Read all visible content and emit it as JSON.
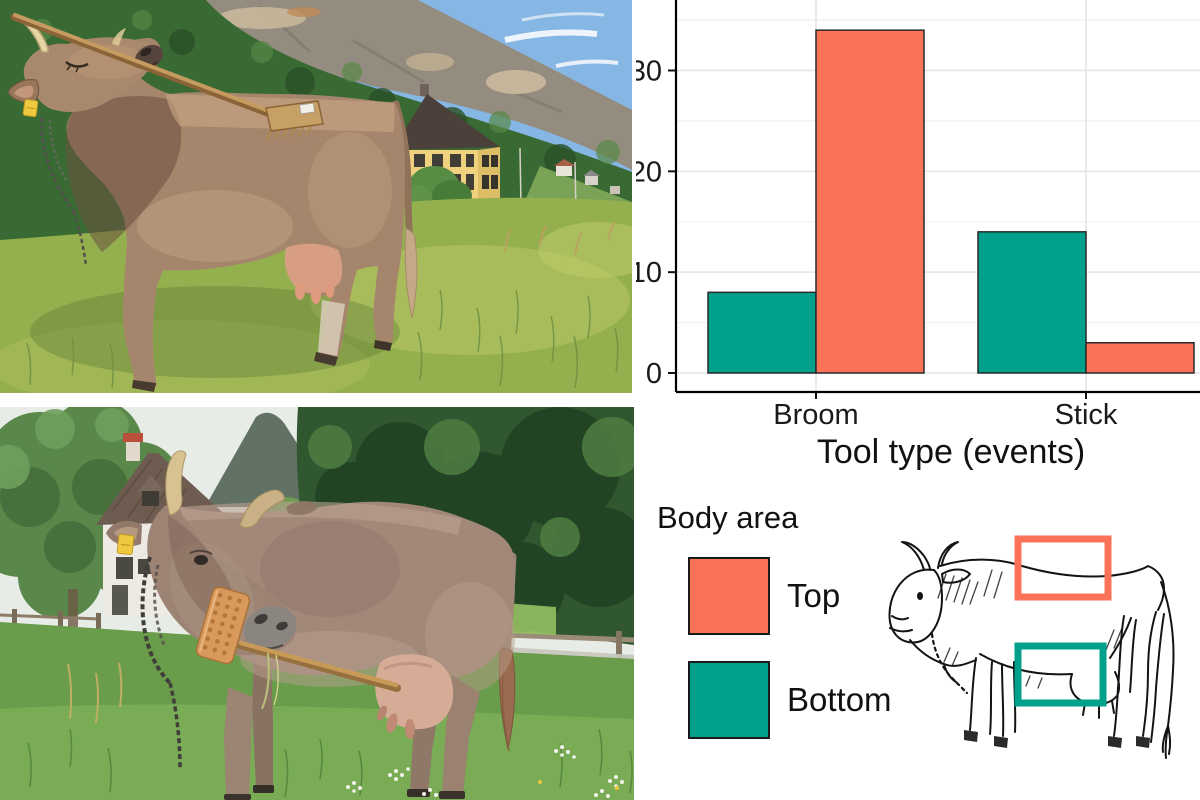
{
  "figure": {
    "kind": "scientific figure",
    "panels": [
      "photo-top",
      "photo-bottom",
      "bar-chart",
      "legend-with-cow-sketch"
    ]
  },
  "photos": {
    "top": {
      "alt": "Brown cow in alpine pasture rubbing its raised head along a broom handle balanced over its back; rocky mountain, forest and yellow building behind"
    },
    "bottom": {
      "alt": "Grey-brown horned cow in green pasture holding a studded brush with wooden handle in its mouth; house, trees and fence behind"
    }
  },
  "chart_data": {
    "type": "bar",
    "grouped": true,
    "categories": [
      "Broom",
      "Stick"
    ],
    "series": [
      {
        "name": "Bottom",
        "color": "#00A08C",
        "values": [
          8,
          14
        ]
      },
      {
        "name": "Top",
        "color": "#FB7356",
        "values": [
          34,
          3
        ]
      }
    ],
    "xlabel": "Tool type (events)",
    "ylabel": "",
    "yticks": [
      0,
      10,
      20,
      30
    ],
    "yticks_minor": [
      5,
      15,
      25,
      35
    ],
    "ylim": [
      0,
      36.5
    ],
    "bar_border_color": "#2a2a2a",
    "grid": "horizontal major+minor gridlines, vertical gridline at each category center",
    "panel_background": "#ffffff",
    "axis_color": "#000000",
    "legend_title": "Body area",
    "legend_position": "below-left, separate block"
  },
  "legend": {
    "title": "Body area",
    "items": [
      {
        "label": "Top",
        "color": "#FB7356"
      },
      {
        "label": "Bottom",
        "color": "#00A08C"
      }
    ]
  },
  "annotation_sketch": {
    "description": "line drawing of a cow with colored outline boxes marking scratched body areas",
    "top_region_color": "#FB7356",
    "bottom_region_color": "#00A08C"
  }
}
